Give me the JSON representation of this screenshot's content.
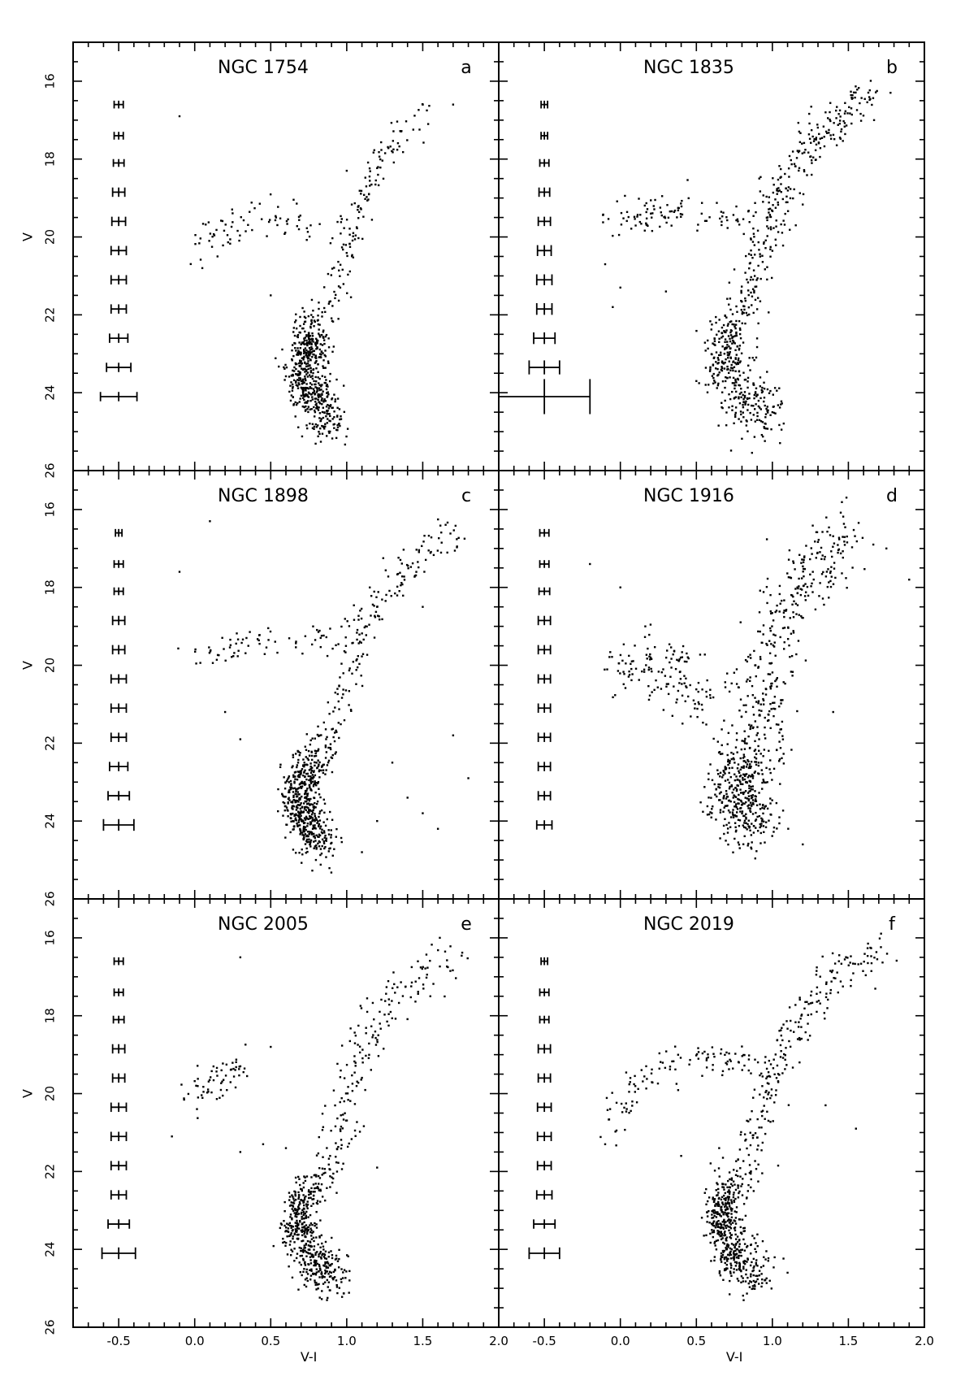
{
  "chart_data": {
    "type": "scatter",
    "xlabel": "V-I",
    "ylabel": "V",
    "xlim": [
      -0.8,
      2.0
    ],
    "ylim": [
      26.0,
      15.0
    ],
    "x_ticks": [
      "-0.5",
      "0.0",
      "0.5",
      "1.0",
      "1.5",
      "2.0"
    ],
    "x_tick_values": [
      -0.5,
      0.0,
      0.5,
      1.0,
      1.5,
      2.0
    ],
    "y_ticks": [
      "16",
      "18",
      "20",
      "22",
      "24",
      "26"
    ],
    "y_tick_values": [
      16,
      18,
      20,
      22,
      24,
      26
    ],
    "error_bar_x": -0.5,
    "error_bar_v": [
      16.6,
      17.4,
      18.1,
      18.85,
      19.6,
      20.35,
      21.1,
      21.85,
      22.6,
      23.35,
      24.1
    ],
    "panels": [
      {
        "title": "NGC 1754",
        "letter": "a",
        "error_bars": {
          "sx": [
            0.03,
            0.03,
            0.035,
            0.04,
            0.045,
            0.05,
            0.05,
            0.05,
            0.06,
            0.08,
            0.12
          ],
          "sv": [
            0.1,
            0.1,
            0.1,
            0.12,
            0.12,
            0.12,
            0.12,
            0.12,
            0.12,
            0.12,
            0.12
          ]
        },
        "sequences": [
          {
            "role": "rgb",
            "n": 150,
            "path": [
              [
                0.86,
                22.5
              ],
              [
                0.9,
                21.5
              ],
              [
                0.97,
                20.5
              ],
              [
                1.05,
                19.5
              ],
              [
                1.15,
                18.5
              ],
              [
                1.28,
                17.6
              ],
              [
                1.45,
                16.9
              ],
              [
                1.6,
                16.6
              ]
            ],
            "sx": 0.05,
            "sv": 0.25
          },
          {
            "role": "hb",
            "n": 70,
            "path": [
              [
                0.0,
                20.2
              ],
              [
                0.2,
                19.8
              ],
              [
                0.4,
                19.5
              ],
              [
                0.6,
                19.6
              ],
              [
                0.85,
                19.7
              ]
            ],
            "sx": 0.06,
            "sv": 0.25
          },
          {
            "role": "ms",
            "n": 560,
            "path": [
              [
                0.8,
                22.4
              ],
              [
                0.73,
                23.0
              ],
              [
                0.72,
                23.6
              ],
              [
                0.78,
                24.2
              ],
              [
                0.9,
                24.8
              ]
            ],
            "sx": 0.06,
            "sv": 0.35
          }
        ],
        "outliers": [
          [
            -0.1,
            16.9
          ],
          [
            0.05,
            20.8
          ],
          [
            0.15,
            20.5
          ],
          [
            0.5,
            21.5
          ],
          [
            1.0,
            18.3
          ],
          [
            1.7,
            16.6
          ]
        ]
      },
      {
        "title": "NGC 1835",
        "letter": "b",
        "error_bars": {
          "sx": [
            0.02,
            0.02,
            0.03,
            0.035,
            0.04,
            0.045,
            0.05,
            0.05,
            0.07,
            0.1,
            0.3
          ],
          "sv": [
            0.1,
            0.1,
            0.1,
            0.12,
            0.12,
            0.14,
            0.14,
            0.15,
            0.15,
            0.18,
            0.45
          ]
        },
        "sequences": [
          {
            "role": "rgb",
            "n": 330,
            "path": [
              [
                0.72,
                22.6
              ],
              [
                0.8,
                21.8
              ],
              [
                0.9,
                20.8
              ],
              [
                1.0,
                19.6
              ],
              [
                1.1,
                18.6
              ],
              [
                1.25,
                17.6
              ],
              [
                1.45,
                16.9
              ],
              [
                1.65,
                16.2
              ]
            ],
            "sx": 0.06,
            "sv": 0.28
          },
          {
            "role": "hb",
            "n": 100,
            "path": [
              [
                0.0,
                19.7
              ],
              [
                0.2,
                19.35
              ],
              [
                0.45,
                19.4
              ],
              [
                0.7,
                19.4
              ],
              [
                0.85,
                19.6
              ]
            ],
            "sx": 0.08,
            "sv": 0.22
          },
          {
            "role": "ms",
            "n": 330,
            "path": [
              [
                0.72,
                22.4
              ],
              [
                0.68,
                23.0
              ],
              [
                0.7,
                23.6
              ],
              [
                0.8,
                24.1
              ],
              [
                1.0,
                24.6
              ]
            ],
            "sx": 0.08,
            "sv": 0.4
          }
        ],
        "outliers": [
          [
            -0.1,
            20.7
          ],
          [
            -0.05,
            21.8
          ],
          [
            0.0,
            21.3
          ],
          [
            0.3,
            21.4
          ],
          [
            0.5,
            23.7
          ],
          [
            0.9,
            24.7
          ],
          [
            1.0,
            24.5
          ],
          [
            1.35,
            16.8
          ]
        ]
      },
      {
        "title": "NGC 1898",
        "letter": "c",
        "error_bars": {
          "sx": [
            0.02,
            0.03,
            0.03,
            0.04,
            0.04,
            0.05,
            0.05,
            0.05,
            0.06,
            0.07,
            0.1
          ],
          "sv": [
            0.1,
            0.1,
            0.1,
            0.12,
            0.12,
            0.12,
            0.12,
            0.12,
            0.12,
            0.12,
            0.15
          ]
        },
        "sequences": [
          {
            "role": "rgb",
            "n": 190,
            "path": [
              [
                0.82,
                22.5
              ],
              [
                0.9,
                21.6
              ],
              [
                1.0,
                20.5
              ],
              [
                1.05,
                19.5
              ],
              [
                1.1,
                18.8
              ],
              [
                1.3,
                17.9
              ],
              [
                1.5,
                17.2
              ],
              [
                1.75,
                16.5
              ]
            ],
            "sx": 0.05,
            "sv": 0.25
          },
          {
            "role": "hb",
            "n": 70,
            "path": [
              [
                0.05,
                19.9
              ],
              [
                0.2,
                19.5
              ],
              [
                0.45,
                19.4
              ],
              [
                0.7,
                19.4
              ],
              [
                0.95,
                19.3
              ]
            ],
            "sx": 0.07,
            "sv": 0.22
          },
          {
            "role": "ms",
            "n": 540,
            "path": [
              [
                0.78,
                22.4
              ],
              [
                0.7,
                23.0
              ],
              [
                0.68,
                23.6
              ],
              [
                0.74,
                24.1
              ],
              [
                0.85,
                24.6
              ]
            ],
            "sx": 0.06,
            "sv": 0.35
          }
        ],
        "outliers": [
          [
            -0.1,
            17.6
          ],
          [
            0.1,
            16.3
          ],
          [
            0.2,
            21.2
          ],
          [
            0.3,
            21.9
          ],
          [
            1.2,
            24.0
          ],
          [
            1.3,
            22.5
          ],
          [
            1.5,
            23.8
          ],
          [
            1.7,
            21.8
          ],
          [
            1.8,
            22.9
          ],
          [
            1.4,
            23.4
          ],
          [
            1.1,
            24.8
          ],
          [
            1.6,
            24.2
          ],
          [
            1.5,
            18.5
          ]
        ]
      },
      {
        "title": "NGC 1916",
        "letter": "d",
        "error_bars": {
          "sx": [
            0.03,
            0.03,
            0.035,
            0.04,
            0.04,
            0.04,
            0.04,
            0.04,
            0.04,
            0.04,
            0.05
          ],
          "sv": [
            0.1,
            0.1,
            0.1,
            0.12,
            0.12,
            0.12,
            0.12,
            0.12,
            0.12,
            0.12,
            0.12
          ]
        },
        "sequences": [
          {
            "role": "rgb",
            "n": 420,
            "path": [
              [
                0.85,
                23.5
              ],
              [
                0.88,
                22.5
              ],
              [
                0.92,
                21.3
              ],
              [
                0.98,
                20.0
              ],
              [
                1.08,
                18.8
              ],
              [
                1.25,
                17.6
              ],
              [
                1.5,
                16.7
              ]
            ],
            "sx": 0.1,
            "sv": 0.4
          },
          {
            "role": "hb",
            "n": 150,
            "path": [
              [
                -0.05,
                20.4
              ],
              [
                0.1,
                19.8
              ],
              [
                0.3,
                19.9
              ],
              [
                0.45,
                20.5
              ],
              [
                0.55,
                21.3
              ]
            ],
            "sx": 0.12,
            "sv": 0.4
          },
          {
            "role": "ms",
            "n": 330,
            "path": [
              [
                0.78,
                22.5
              ],
              [
                0.75,
                23.2
              ],
              [
                0.8,
                23.8
              ],
              [
                0.9,
                24.3
              ]
            ],
            "sx": 0.1,
            "sv": 0.4
          }
        ],
        "outliers": [
          [
            -0.2,
            17.4
          ],
          [
            0.0,
            18.0
          ],
          [
            1.4,
            21.2
          ],
          [
            1.75,
            17.0
          ],
          [
            1.9,
            17.8
          ],
          [
            1.2,
            24.6
          ]
        ]
      },
      {
        "title": "NGC 2005",
        "letter": "e",
        "error_bars": {
          "sx": [
            0.03,
            0.03,
            0.035,
            0.04,
            0.04,
            0.05,
            0.05,
            0.05,
            0.05,
            0.07,
            0.11
          ],
          "sv": [
            0.1,
            0.1,
            0.1,
            0.12,
            0.12,
            0.12,
            0.12,
            0.12,
            0.12,
            0.12,
            0.15
          ]
        },
        "sequences": [
          {
            "role": "rgb",
            "n": 200,
            "path": [
              [
                0.82,
                22.5
              ],
              [
                0.92,
                21.5
              ],
              [
                0.98,
                20.5
              ],
              [
                1.05,
                19.3
              ],
              [
                1.15,
                18.4
              ],
              [
                1.3,
                17.6
              ],
              [
                1.5,
                16.9
              ],
              [
                1.7,
                16.5
              ]
            ],
            "sx": 0.06,
            "sv": 0.3
          },
          {
            "role": "hb",
            "n": 60,
            "path": [
              [
                0.0,
                20.2
              ],
              [
                0.15,
                19.7
              ],
              [
                0.3,
                19.3
              ]
            ],
            "sx": 0.06,
            "sv": 0.2
          },
          {
            "role": "ms",
            "n": 480,
            "path": [
              [
                0.76,
                22.4
              ],
              [
                0.68,
                23.0
              ],
              [
                0.68,
                23.6
              ],
              [
                0.75,
                24.2
              ],
              [
                0.95,
                24.7
              ]
            ],
            "sx": 0.06,
            "sv": 0.35
          }
        ],
        "outliers": [
          [
            -0.15,
            21.1
          ],
          [
            0.3,
            16.5
          ],
          [
            0.3,
            21.5
          ],
          [
            0.45,
            21.3
          ],
          [
            0.5,
            18.8
          ],
          [
            0.6,
            21.4
          ],
          [
            1.55,
            17.5
          ],
          [
            1.2,
            21.9
          ]
        ]
      },
      {
        "title": "NGC 2019",
        "letter": "f",
        "error_bars": {
          "sx": [
            0.015,
            0.03,
            0.03,
            0.04,
            0.04,
            0.045,
            0.045,
            0.045,
            0.05,
            0.07,
            0.1
          ],
          "sv": [
            0.1,
            0.1,
            0.1,
            0.12,
            0.12,
            0.12,
            0.12,
            0.12,
            0.12,
            0.12,
            0.15
          ]
        },
        "sequences": [
          {
            "role": "rgb",
            "n": 240,
            "path": [
              [
                0.78,
                22.5
              ],
              [
                0.86,
                21.5
              ],
              [
                0.93,
                20.5
              ],
              [
                1.0,
                19.5
              ],
              [
                1.1,
                18.6
              ],
              [
                1.25,
                17.6
              ],
              [
                1.45,
                16.9
              ],
              [
                1.7,
                16.3
              ]
            ],
            "sx": 0.05,
            "sv": 0.28
          },
          {
            "role": "hb",
            "n": 110,
            "path": [
              [
                -0.05,
                20.8
              ],
              [
                0.05,
                19.9
              ],
              [
                0.2,
                19.45
              ],
              [
                0.45,
                19.1
              ],
              [
                0.7,
                19.1
              ],
              [
                0.9,
                19.2
              ]
            ],
            "sx": 0.06,
            "sv": 0.22
          },
          {
            "role": "ms",
            "n": 480,
            "path": [
              [
                0.72,
                22.4
              ],
              [
                0.66,
                23.0
              ],
              [
                0.67,
                23.6
              ],
              [
                0.75,
                24.2
              ],
              [
                0.92,
                24.7
              ]
            ],
            "sx": 0.06,
            "sv": 0.35
          }
        ],
        "outliers": [
          [
            -0.1,
            21.3
          ],
          [
            0.4,
            21.6
          ],
          [
            0.65,
            21.4
          ],
          [
            1.35,
            20.3
          ],
          [
            1.55,
            20.9
          ],
          [
            1.1,
            24.6
          ]
        ]
      }
    ]
  }
}
